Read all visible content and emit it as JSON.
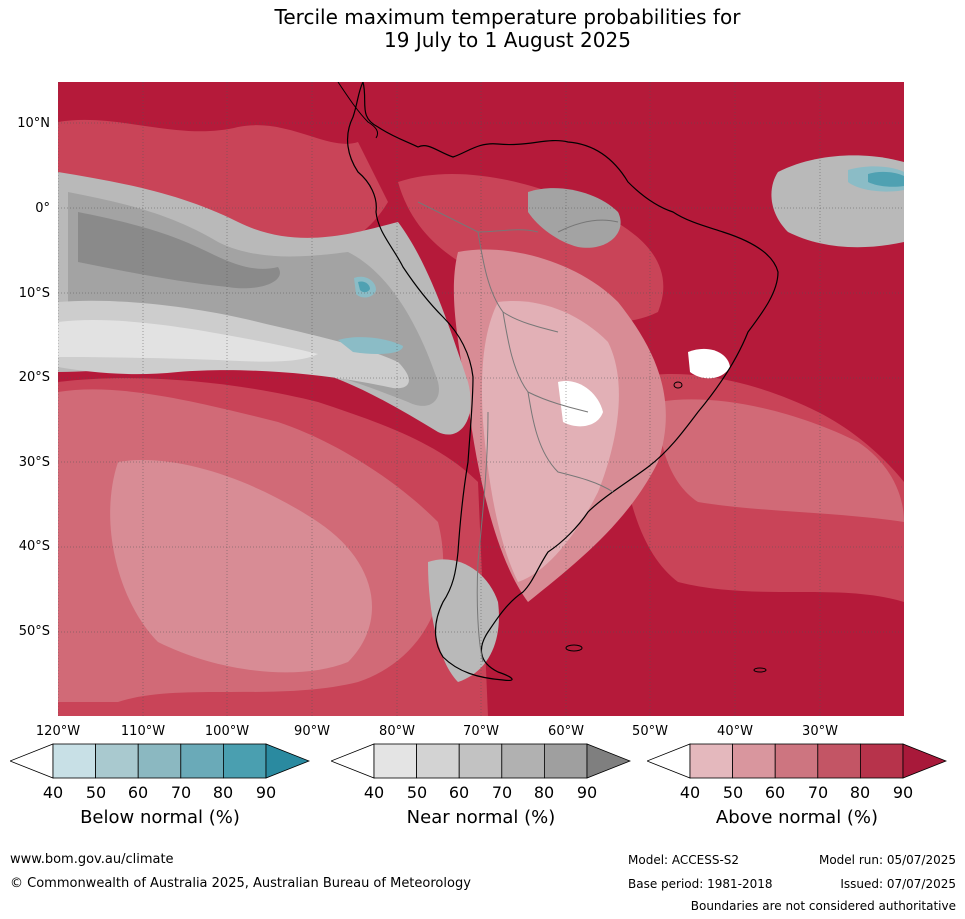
{
  "title": {
    "line1": "Tercile maximum temperature probabilities for",
    "line2": "19 July to 1 August 2025"
  },
  "map": {
    "lat_labels": [
      "10°N",
      "0°",
      "10°S",
      "20°S",
      "30°S",
      "40°S",
      "50°S"
    ],
    "lon_labels": [
      "120°W",
      "110°W",
      "100°W",
      "90°W",
      "80°W",
      "70°W",
      "60°W",
      "50°W",
      "40°W",
      "30°W"
    ],
    "colors": {
      "above_90": "#b51a3a",
      "above_80": "#c94458",
      "above_70": "#d16a77",
      "above_60": "#d88c95",
      "above_50": "#e2b0b6",
      "near_90": "#8a8a8a",
      "near_80": "#a3a3a3",
      "near_70": "#b9b9b9",
      "near_60": "#cdcdcd",
      "near_50": "#e2e2e2",
      "below_70": "#8bbcc6",
      "below_80": "#4fa1b2"
    }
  },
  "colorbars": [
    {
      "title": "Below normal (%)",
      "ticks": [
        "40",
        "50",
        "60",
        "70",
        "80",
        "90"
      ],
      "colors": [
        "#ffffff",
        "#c8e0e6",
        "#a9c9cf",
        "#8bb8c1",
        "#6aaab8",
        "#4a9fb0",
        "#2a8aa0"
      ]
    },
    {
      "title": "Near normal (%)",
      "ticks": [
        "40",
        "50",
        "60",
        "70",
        "80",
        "90"
      ],
      "colors": [
        "#ffffff",
        "#e4e4e4",
        "#d3d3d3",
        "#c2c2c2",
        "#b1b1b1",
        "#9f9f9f",
        "#7f7f7f"
      ]
    },
    {
      "title": "Above normal (%)",
      "ticks": [
        "40",
        "50",
        "60",
        "70",
        "80",
        "90"
      ],
      "colors": [
        "#ffffff",
        "#e4b8bd",
        "#d9969e",
        "#cd7580",
        "#c35565",
        "#b7334b",
        "#a8193a"
      ]
    }
  ],
  "footer": {
    "website": "www.bom.gov.au/climate",
    "copyright": "© Commonwealth of Australia 2025, Australian Bureau of Meteorology",
    "model": "Model: ACCESS-S2",
    "base_period": "Base period: 1981-2018",
    "model_run": "Model run: 05/07/2025",
    "issued": "Issued: 07/07/2025",
    "disclaimer": "Boundaries are not considered authoritative"
  }
}
